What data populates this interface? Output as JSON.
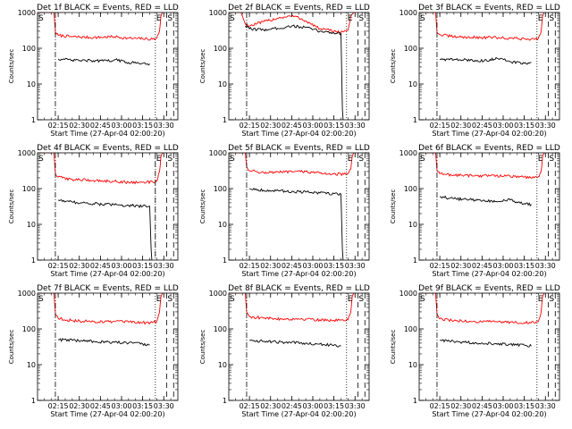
{
  "x_tick_labels": [
    "02:15",
    "02:30",
    "02:45",
    "03:00",
    "03:15",
    "03:30"
  ],
  "y_tick_labels": [
    "1",
    "10",
    "100",
    "1000"
  ],
  "ylabel": "Counts/sec",
  "xlabel": "Start Time (27-Apr-04 02:00:20)",
  "marker_labels": {
    "start": "S",
    "end": "E",
    "saa": "S"
  },
  "colors": {
    "events": "#000000",
    "lld": "#ff0000",
    "background": "#ffffff"
  },
  "chart_data": [
    {
      "type": "line",
      "title": "Det 1f BLACK = Events, RED = LLD",
      "xlim": [
        "02:00:20",
        "03:40"
      ],
      "ylim": [
        1,
        1000
      ],
      "yscale": "log",
      "markers": {
        "start": "02:13",
        "end": "03:24",
        "saa": "03:32",
        "dashed": [
          "03:32",
          "03:37"
        ]
      },
      "series": [
        {
          "key": "lld",
          "color": "red",
          "x": [
            "02:00:20",
            "02:05",
            "02:09",
            "02:12",
            "02:13",
            "02:15",
            "02:25",
            "02:40",
            "02:55",
            "03:05",
            "03:15",
            "03:22",
            "03:25",
            "03:27",
            "03:28",
            "03:29"
          ],
          "values": [
            1000,
            1000,
            1000,
            1000,
            280,
            230,
            210,
            200,
            210,
            190,
            185,
            180,
            190,
            300,
            800,
            1000
          ]
        },
        {
          "key": "events",
          "color": "black",
          "x": [
            "02:15",
            "02:25",
            "02:40",
            "02:50",
            "02:55",
            "03:05",
            "03:15",
            "03:20"
          ],
          "values": [
            50,
            46,
            45,
            44,
            48,
            40,
            38,
            37
          ]
        }
      ]
    },
    {
      "type": "line",
      "title": "Det 2f BLACK = Events, RED = LLD",
      "xlim": [
        "02:00:20",
        "03:40"
      ],
      "ylim": [
        1,
        1000
      ],
      "yscale": "log",
      "markers": {
        "start": "02:13",
        "end": "03:24",
        "saa": "03:32",
        "dashed": [
          "03:32",
          "03:37"
        ]
      },
      "series": [
        {
          "key": "lld",
          "color": "red",
          "x": [
            "02:00:20",
            "02:05",
            "02:09",
            "02:12",
            "02:15",
            "02:25",
            "02:35",
            "02:45",
            "02:50",
            "02:55",
            "03:05",
            "03:15",
            "03:22",
            "03:25",
            "03:27",
            "03:29"
          ],
          "values": [
            1000,
            1000,
            1000,
            480,
            420,
            550,
            700,
            800,
            720,
            580,
            350,
            300,
            290,
            320,
            800,
            1000
          ]
        },
        {
          "key": "events",
          "color": "black",
          "x": [
            "02:12",
            "02:15",
            "02:25",
            "02:35",
            "02:45",
            "02:55",
            "03:05",
            "03:15",
            "03:20",
            "03:21",
            "03:21.5"
          ],
          "values": [
            420,
            350,
            330,
            360,
            420,
            380,
            300,
            270,
            260,
            2,
            1
          ]
        }
      ]
    },
    {
      "type": "line",
      "title": "Det 3f BLACK = Events, RED = LLD",
      "xlim": [
        "02:00:20",
        "03:40"
      ],
      "ylim": [
        1,
        1000
      ],
      "yscale": "log",
      "markers": {
        "start": "02:13",
        "end": "03:24",
        "saa": "03:32",
        "dashed": [
          "03:32",
          "03:37"
        ]
      },
      "series": [
        {
          "key": "lld",
          "color": "red",
          "x": [
            "02:00:20",
            "02:05",
            "02:09",
            "02:12",
            "02:13",
            "02:15",
            "02:25",
            "02:40",
            "02:55",
            "03:05",
            "03:15",
            "03:22",
            "03:25",
            "03:27",
            "03:28",
            "03:29"
          ],
          "values": [
            1000,
            1000,
            1000,
            1000,
            280,
            240,
            210,
            200,
            200,
            190,
            185,
            180,
            190,
            300,
            800,
            1000
          ]
        },
        {
          "key": "events",
          "color": "black",
          "x": [
            "02:15",
            "02:25",
            "02:40",
            "02:50",
            "02:55",
            "03:05",
            "03:15",
            "03:20"
          ],
          "values": [
            50,
            48,
            46,
            44,
            55,
            42,
            38,
            40
          ]
        }
      ]
    },
    {
      "type": "line",
      "title": "Det 4f BLACK = Events, RED = LLD",
      "xlim": [
        "02:00:20",
        "03:40"
      ],
      "ylim": [
        1,
        1000
      ],
      "yscale": "log",
      "markers": {
        "start": "02:13",
        "end": "03:24",
        "saa": "03:32",
        "dashed": [
          "03:24",
          "03:32",
          "03:37"
        ]
      },
      "series": [
        {
          "key": "lld",
          "color": "red",
          "x": [
            "02:00:20",
            "02:05",
            "02:09",
            "02:12",
            "02:13",
            "02:15",
            "02:25",
            "02:40",
            "02:55",
            "03:05",
            "03:15",
            "03:22",
            "03:25",
            "03:27",
            "03:28",
            "03:29"
          ],
          "values": [
            1000,
            1000,
            1000,
            1000,
            250,
            210,
            180,
            170,
            160,
            150,
            150,
            155,
            160,
            300,
            800,
            1000
          ]
        },
        {
          "key": "events",
          "color": "black",
          "x": [
            "02:15",
            "02:25",
            "02:40",
            "02:55",
            "03:05",
            "03:15",
            "03:20",
            "03:21",
            "03:21.5"
          ],
          "values": [
            48,
            42,
            38,
            35,
            34,
            32,
            32,
            2,
            1
          ]
        }
      ]
    },
    {
      "type": "line",
      "title": "Det 5f BLACK = Events, RED = LLD",
      "xlim": [
        "02:00:20",
        "03:40"
      ],
      "ylim": [
        1,
        1000
      ],
      "yscale": "log",
      "markers": {
        "start": "02:13",
        "end": "03:24",
        "saa": "03:32",
        "dashed": [
          "03:32",
          "03:37"
        ]
      },
      "series": [
        {
          "key": "lld",
          "color": "red",
          "x": [
            "02:00:20",
            "02:05",
            "02:09",
            "02:12",
            "02:13",
            "02:15",
            "02:25",
            "02:40",
            "02:55",
            "03:05",
            "03:15",
            "03:22",
            "03:25",
            "03:27",
            "03:28",
            "03:29"
          ],
          "values": [
            1000,
            1000,
            1000,
            1000,
            400,
            320,
            280,
            290,
            300,
            270,
            260,
            250,
            260,
            350,
            800,
            1000
          ]
        },
        {
          "key": "events",
          "color": "black",
          "x": [
            "02:15",
            "02:25",
            "02:40",
            "02:55",
            "03:05",
            "03:15",
            "03:20",
            "03:21",
            "03:21.5"
          ],
          "values": [
            100,
            90,
            85,
            80,
            75,
            72,
            70,
            2,
            1
          ]
        }
      ]
    },
    {
      "type": "line",
      "title": "Det 6f BLACK = Events, RED = LLD",
      "xlim": [
        "02:00:20",
        "03:40"
      ],
      "ylim": [
        1,
        1000
      ],
      "yscale": "log",
      "markers": {
        "start": "02:13",
        "end": "03:24",
        "saa": "03:32",
        "dashed": [
          "03:32",
          "03:37"
        ]
      },
      "series": [
        {
          "key": "lld",
          "color": "red",
          "x": [
            "02:00:20",
            "02:05",
            "02:09",
            "02:12",
            "02:13",
            "02:15",
            "02:25",
            "02:40",
            "02:55",
            "03:05",
            "03:15",
            "03:22",
            "03:25",
            "03:27",
            "03:28",
            "03:29"
          ],
          "values": [
            1000,
            1000,
            1000,
            1000,
            320,
            260,
            240,
            230,
            230,
            220,
            210,
            200,
            215,
            300,
            800,
            1000
          ]
        },
        {
          "key": "events",
          "color": "black",
          "x": [
            "02:15",
            "02:25",
            "02:40",
            "02:55",
            "03:05",
            "03:10",
            "03:15",
            "03:20"
          ],
          "values": [
            60,
            52,
            48,
            44,
            48,
            40,
            38,
            36
          ]
        }
      ]
    },
    {
      "type": "line",
      "title": "Det 7f BLACK = Events, RED = LLD",
      "xlim": [
        "02:00:20",
        "03:40"
      ],
      "ylim": [
        1,
        1000
      ],
      "yscale": "log",
      "markers": {
        "start": "02:13",
        "end": "03:24",
        "saa": "03:32",
        "dashed": [
          "03:32",
          "03:37"
        ]
      },
      "series": [
        {
          "key": "lld",
          "color": "red",
          "x": [
            "02:00:20",
            "02:05",
            "02:09",
            "02:12",
            "02:13",
            "02:15",
            "02:25",
            "02:40",
            "02:55",
            "03:05",
            "03:15",
            "03:22",
            "03:25",
            "03:27",
            "03:28",
            "03:29"
          ],
          "values": [
            1000,
            1000,
            1000,
            1000,
            260,
            200,
            170,
            160,
            160,
            155,
            150,
            150,
            160,
            300,
            800,
            1000
          ]
        },
        {
          "key": "events",
          "color": "black",
          "x": [
            "02:15",
            "02:25",
            "02:40",
            "02:55",
            "03:05",
            "03:15",
            "03:20"
          ],
          "values": [
            50,
            48,
            45,
            42,
            40,
            38,
            36
          ]
        }
      ]
    },
    {
      "type": "line",
      "title": "Det 8f BLACK = Events, RED = LLD",
      "xlim": [
        "02:00:20",
        "03:40"
      ],
      "ylim": [
        1,
        1000
      ],
      "yscale": "log",
      "markers": {
        "start": "02:13",
        "end": "03:24",
        "saa": "03:32",
        "dashed": [
          "03:32",
          "03:37"
        ]
      },
      "series": [
        {
          "key": "lld",
          "color": "red",
          "x": [
            "02:00:20",
            "02:05",
            "02:09",
            "02:12",
            "02:13",
            "02:15",
            "02:25",
            "02:40",
            "02:55",
            "03:05",
            "03:15",
            "03:22",
            "03:25",
            "03:27",
            "03:28",
            "03:29"
          ],
          "values": [
            1000,
            1000,
            1000,
            1000,
            300,
            220,
            200,
            190,
            190,
            180,
            175,
            170,
            180,
            300,
            800,
            1000
          ]
        },
        {
          "key": "events",
          "color": "black",
          "x": [
            "02:15",
            "02:25",
            "02:40",
            "02:55",
            "03:05",
            "03:15",
            "03:20"
          ],
          "values": [
            48,
            45,
            42,
            40,
            38,
            35,
            33
          ]
        }
      ]
    },
    {
      "type": "line",
      "title": "Det 9f BLACK = Events, RED = LLD",
      "xlim": [
        "02:00:20",
        "03:40"
      ],
      "ylim": [
        1,
        1000
      ],
      "yscale": "log",
      "markers": {
        "start": "02:13",
        "end": "03:24",
        "saa": "03:32",
        "dashed": [
          "03:32",
          "03:37"
        ]
      },
      "series": [
        {
          "key": "lld",
          "color": "red",
          "x": [
            "02:00:20",
            "02:05",
            "02:09",
            "02:12",
            "02:13",
            "02:15",
            "02:25",
            "02:40",
            "02:55",
            "03:05",
            "03:15",
            "03:22",
            "03:25",
            "03:27",
            "03:28",
            "03:29"
          ],
          "values": [
            1000,
            1000,
            1000,
            1000,
            260,
            190,
            170,
            160,
            160,
            155,
            150,
            150,
            160,
            300,
            800,
            1000
          ]
        },
        {
          "key": "events",
          "color": "black",
          "x": [
            "02:15",
            "02:25",
            "02:40",
            "02:55",
            "03:05",
            "03:15",
            "03:20"
          ],
          "values": [
            48,
            44,
            41,
            39,
            37,
            35,
            33
          ]
        }
      ]
    }
  ]
}
